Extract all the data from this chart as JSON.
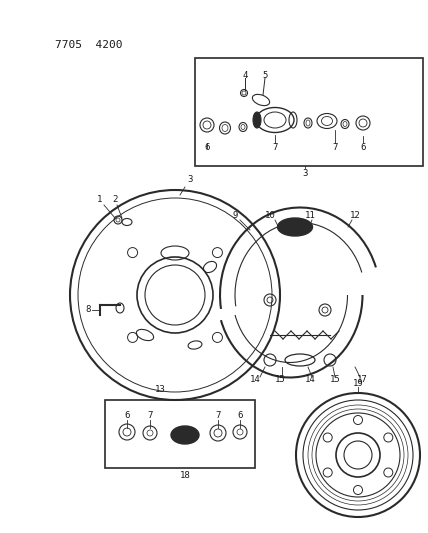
{
  "title": "7705  4200",
  "background_color": "#ffffff",
  "line_color": "#2a2a2a",
  "text_color": "#1a1a1a",
  "fig_width": 4.28,
  "fig_height": 5.33,
  "dpi": 100,
  "labels": {
    "header": "7705  4200",
    "numbers": [
      "1",
      "2",
      "3",
      "3",
      "4",
      "5",
      "6",
      "7",
      "7",
      "6",
      "8",
      "9",
      "10",
      "11",
      "12",
      "13",
      "14",
      "15",
      "14",
      "15",
      "17",
      "18",
      "19"
    ]
  }
}
